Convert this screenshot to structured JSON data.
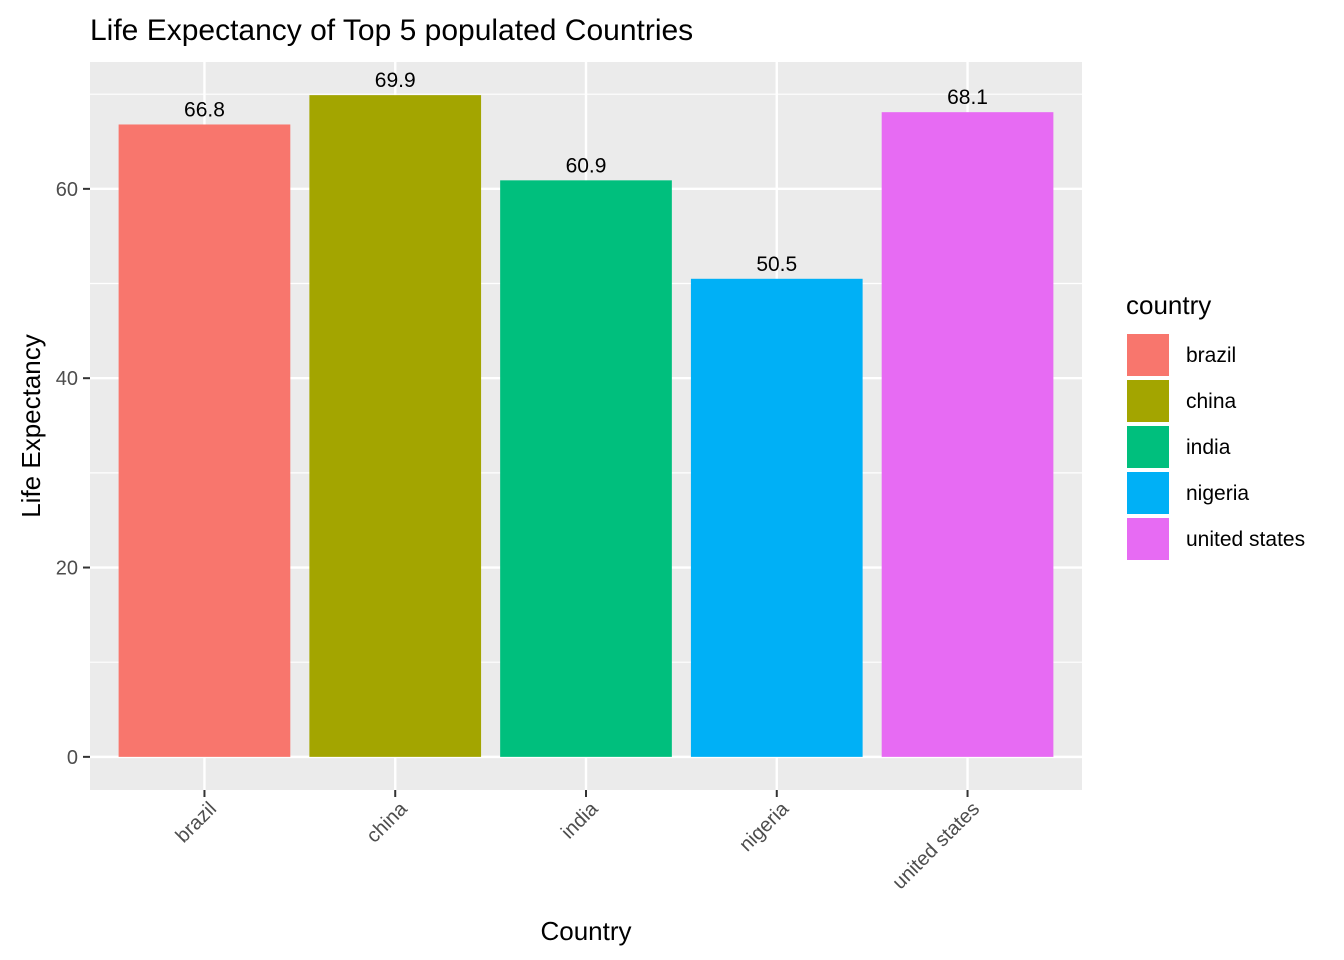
{
  "chart_data": {
    "type": "bar",
    "title": "Life Expectancy of Top 5 populated Countries",
    "xlabel": "Country",
    "ylabel": "Life Expectancy",
    "categories": [
      "brazil",
      "china",
      "india",
      "nigeria",
      "united states"
    ],
    "values": [
      66.8,
      69.9,
      60.9,
      50.5,
      68.1
    ],
    "data_labels": [
      "66.8",
      "69.9",
      "60.9",
      "50.5",
      "68.1"
    ],
    "colors": [
      "#F8766D",
      "#A3A500",
      "#00BF7D",
      "#00B0F6",
      "#E76BF3"
    ],
    "yticks": [
      0,
      20,
      40,
      60
    ],
    "ylim": [
      -3.5,
      73.4
    ],
    "grid": true,
    "background": "#EBEBEB",
    "legend": {
      "title": "country",
      "position": "right",
      "entries": [
        "brazil",
        "china",
        "india",
        "nigeria",
        "united states"
      ]
    },
    "x_tick_rotation": 45
  }
}
